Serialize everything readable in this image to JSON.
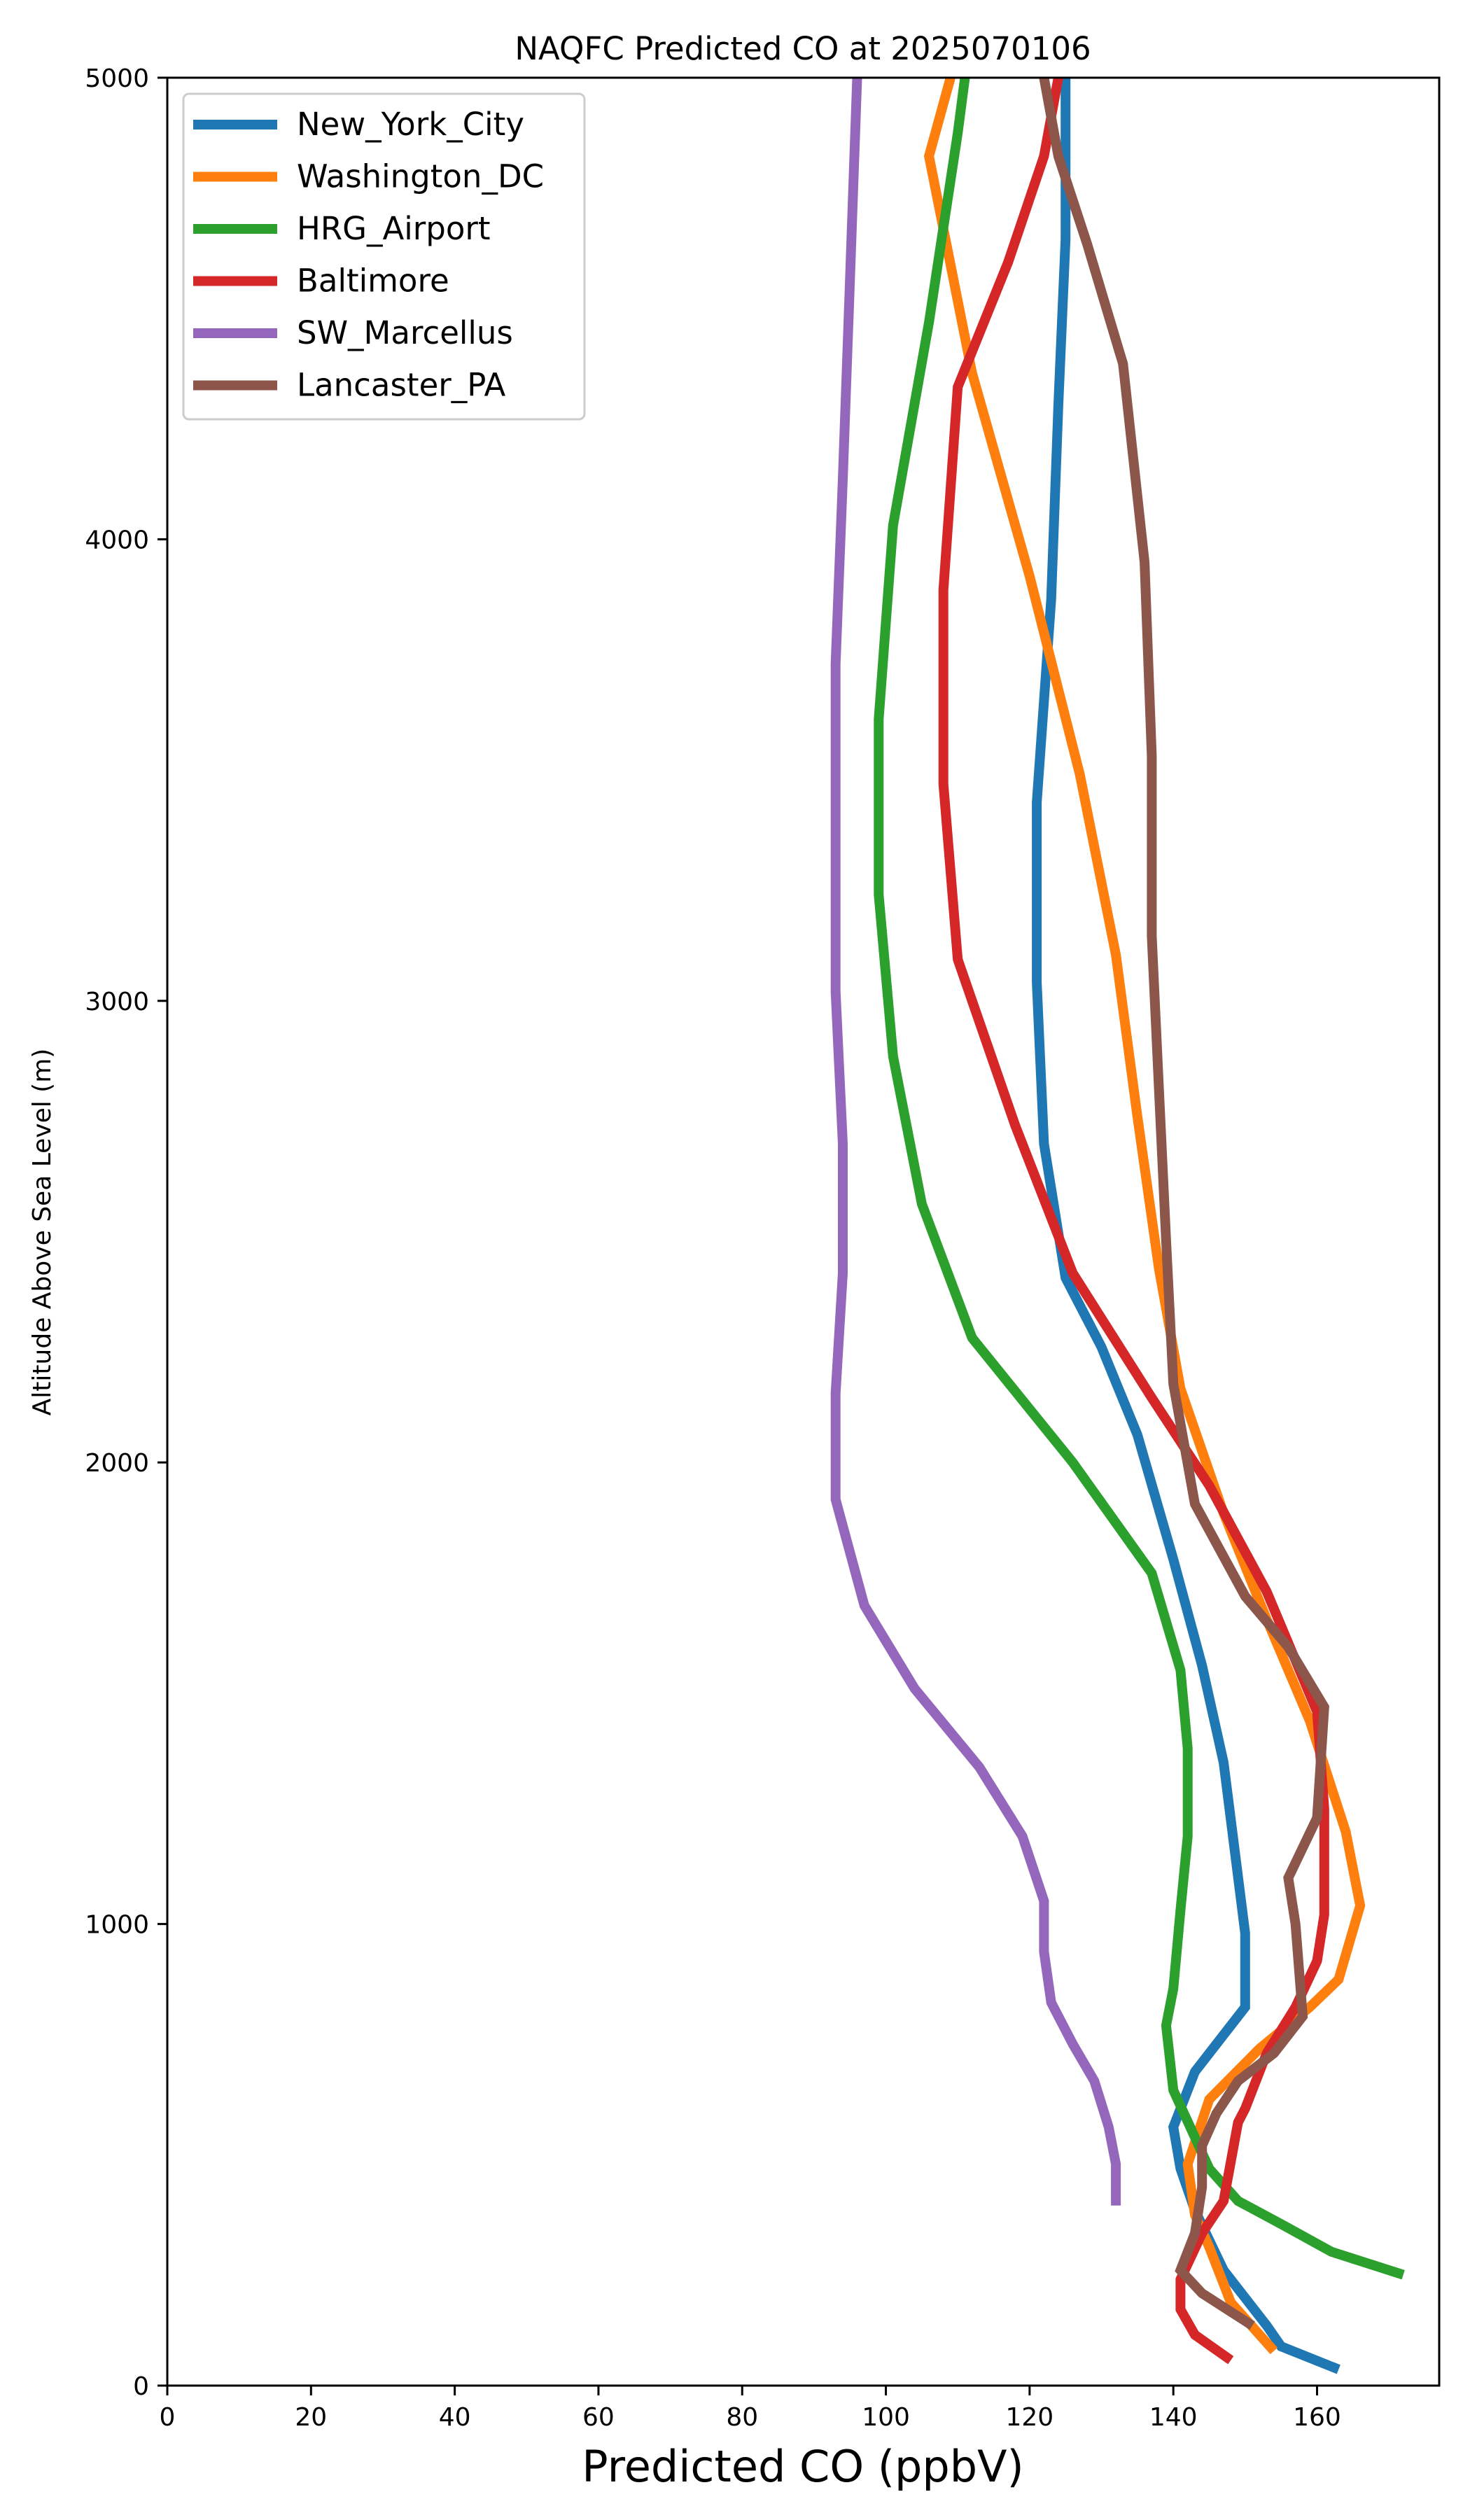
{
  "chart_data": {
    "type": "line",
    "title": "NAQFC Predicted CO at 2025070106",
    "xlabel": "Predicted CO (ppbV)",
    "ylabel": "Altitude Above Sea Level (m)",
    "xlim": [
      0,
      177
    ],
    "ylim": [
      0,
      5000
    ],
    "xticks": [
      "0",
      "20",
      "40",
      "60",
      "80",
      "100",
      "120",
      "140",
      "160"
    ],
    "yticks": [
      "0",
      "1000",
      "2000",
      "3000",
      "4000",
      "5000"
    ],
    "grid": false,
    "legend_position": "top-left",
    "series": [
      {
        "name": "New_York_City",
        "color": "#1f77b4",
        "points": [
          [
            163,
            35
          ],
          [
            155,
            85
          ],
          [
            153,
            130
          ],
          [
            147,
            250
          ],
          [
            143,
            380
          ],
          [
            141,
            470
          ],
          [
            140,
            560
          ],
          [
            143,
            680
          ],
          [
            150,
            820
          ],
          [
            150,
            980
          ],
          [
            147,
            1350
          ],
          [
            144,
            1560
          ],
          [
            140,
            1790
          ],
          [
            135,
            2060
          ],
          [
            130,
            2250
          ],
          [
            125,
            2400
          ],
          [
            122,
            2690
          ],
          [
            121,
            3040
          ],
          [
            121,
            3430
          ],
          [
            123,
            3870
          ],
          [
            124,
            4290
          ],
          [
            125,
            4650
          ],
          [
            125,
            5000
          ]
        ]
      },
      {
        "name": "Washington_DC",
        "color": "#ff7f0e",
        "points": [
          [
            154,
            75
          ],
          [
            148,
            180
          ],
          [
            145,
            300
          ],
          [
            143,
            370
          ],
          [
            142,
            480
          ],
          [
            145,
            620
          ],
          [
            152,
            730
          ],
          [
            159,
            820
          ],
          [
            163,
            880
          ],
          [
            166,
            1040
          ],
          [
            164,
            1200
          ],
          [
            159,
            1440
          ],
          [
            153,
            1660
          ],
          [
            147,
            1890
          ],
          [
            141,
            2160
          ],
          [
            138,
            2420
          ],
          [
            135,
            2750
          ],
          [
            132,
            3100
          ],
          [
            127,
            3490
          ],
          [
            120,
            3920
          ],
          [
            112,
            4360
          ],
          [
            106,
            4830
          ],
          [
            109,
            5000
          ]
        ]
      },
      {
        "name": "HRG_Airport",
        "color": "#2ca02c",
        "points": [
          [
            172,
            240
          ],
          [
            162,
            290
          ],
          [
            155,
            350
          ],
          [
            149,
            400
          ],
          [
            145,
            470
          ],
          [
            140,
            640
          ],
          [
            139,
            780
          ],
          [
            140,
            860
          ],
          [
            141,
            1030
          ],
          [
            142,
            1190
          ],
          [
            142,
            1380
          ],
          [
            141,
            1550
          ],
          [
            137,
            1760
          ],
          [
            126,
            2000
          ],
          [
            112,
            2270
          ],
          [
            105,
            2560
          ],
          [
            101,
            2880
          ],
          [
            99,
            3230
          ],
          [
            99,
            3610
          ],
          [
            101,
            4030
          ],
          [
            106,
            4470
          ],
          [
            110,
            4880
          ],
          [
            111,
            5000
          ]
        ]
      },
      {
        "name": "Baltimore",
        "color": "#d62728",
        "points": [
          [
            148,
            55
          ],
          [
            143,
            110
          ],
          [
            141,
            165
          ],
          [
            141,
            230
          ],
          [
            144,
            330
          ],
          [
            147,
            400
          ],
          [
            149,
            570
          ],
          [
            150,
            600
          ],
          [
            153,
            720
          ],
          [
            157,
            820
          ],
          [
            160,
            920
          ],
          [
            161,
            1020
          ],
          [
            161,
            1250
          ],
          [
            160,
            1460
          ],
          [
            153,
            1720
          ],
          [
            145,
            1950
          ],
          [
            137,
            2140
          ],
          [
            126,
            2410
          ],
          [
            118,
            2730
          ],
          [
            110,
            3090
          ],
          [
            108,
            3470
          ],
          [
            108,
            3890
          ],
          [
            110,
            4330
          ],
          [
            117,
            4600
          ],
          [
            122,
            4830
          ],
          [
            124,
            5000
          ]
        ]
      },
      {
        "name": "SW_Marcellus",
        "color": "#9467bd",
        "points": [
          [
            132,
            390
          ],
          [
            132,
            480
          ],
          [
            131,
            560
          ],
          [
            129,
            660
          ],
          [
            126,
            740
          ],
          [
            123,
            830
          ],
          [
            122,
            940
          ],
          [
            122,
            1050
          ],
          [
            119,
            1190
          ],
          [
            113,
            1340
          ],
          [
            104,
            1510
          ],
          [
            97,
            1690
          ],
          [
            93,
            1920
          ],
          [
            93,
            2150
          ],
          [
            94,
            2410
          ],
          [
            94,
            2690
          ],
          [
            93,
            3020
          ],
          [
            93,
            3360
          ],
          [
            93,
            3730
          ],
          [
            94,
            4130
          ],
          [
            95,
            4560
          ],
          [
            96,
            5000
          ]
        ]
      },
      {
        "name": "Lancaster_PA",
        "color": "#8c564b",
        "points": [
          [
            151,
            130
          ],
          [
            144,
            200
          ],
          [
            141,
            250
          ],
          [
            143,
            330
          ],
          [
            144,
            430
          ],
          [
            144,
            520
          ],
          [
            146,
            590
          ],
          [
            149,
            660
          ],
          [
            154,
            720
          ],
          [
            158,
            800
          ],
          [
            157,
            1000
          ],
          [
            156,
            1100
          ],
          [
            160,
            1230
          ],
          [
            161,
            1470
          ],
          [
            156,
            1600
          ],
          [
            150,
            1710
          ],
          [
            143,
            1910
          ],
          [
            140,
            2170
          ],
          [
            139,
            2480
          ],
          [
            138,
            2810
          ],
          [
            137,
            3140
          ],
          [
            137,
            3530
          ],
          [
            136,
            3950
          ],
          [
            133,
            4380
          ],
          [
            128,
            4640
          ],
          [
            124,
            4830
          ],
          [
            122,
            5000
          ]
        ]
      }
    ]
  }
}
